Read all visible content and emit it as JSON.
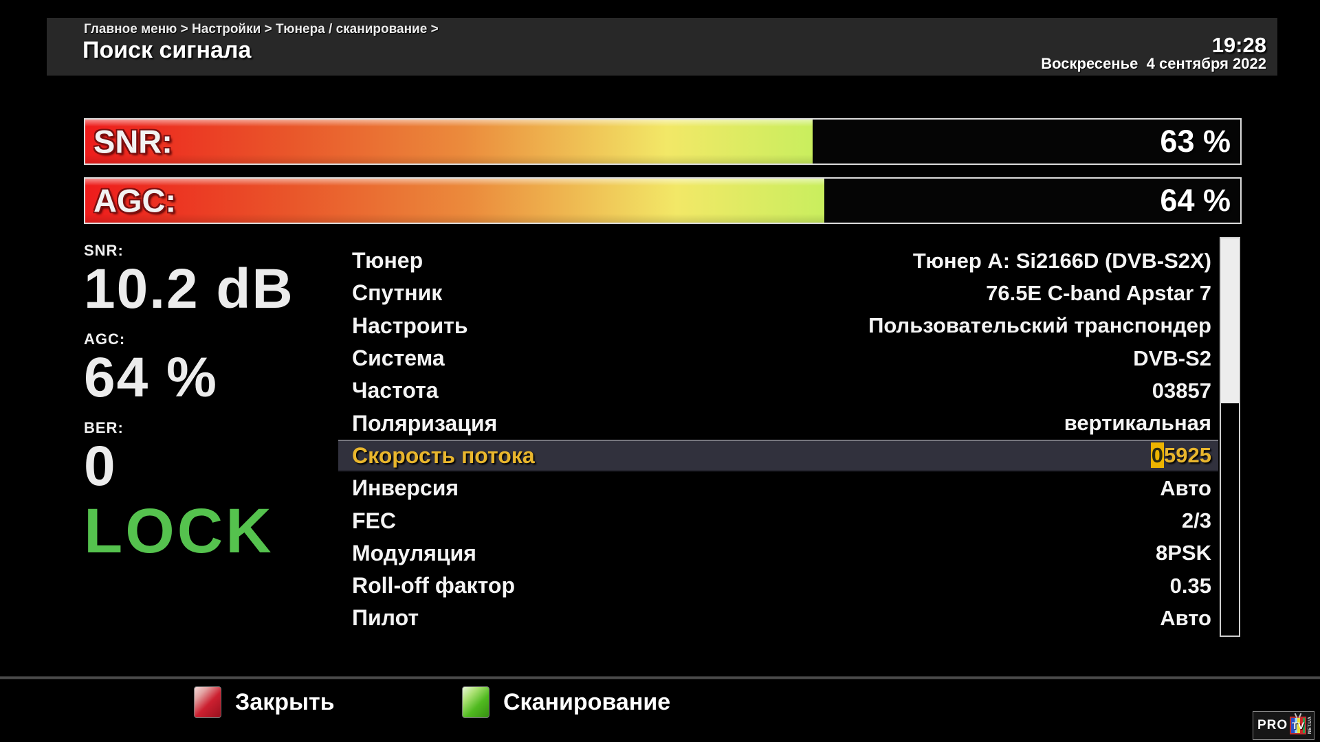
{
  "header": {
    "breadcrumb": "Главное меню > Настройки > Тюнера / сканирование >",
    "title": "Поиск сигнала",
    "time": "19:28",
    "date": "Воскресенье  4 сентября 2022"
  },
  "bars": {
    "snr": {
      "label": "SNR:",
      "value": "63 %",
      "percent": 63
    },
    "agc": {
      "label": "AGC:",
      "value": "64 %",
      "percent": 64
    }
  },
  "stats": {
    "snr": {
      "label": "SNR:",
      "value": "10.2 dB"
    },
    "agc": {
      "label": "AGC:",
      "value": "64 %"
    },
    "ber": {
      "label": "BER:",
      "value": "0"
    },
    "lock": {
      "value": "LOCK",
      "color": "#55c24e"
    }
  },
  "menu": {
    "items": [
      {
        "label": "Тюнер",
        "value": "Тюнер A: Si2166D (DVB-S2X)",
        "selected": false
      },
      {
        "label": "Спутник",
        "value": "76.5E C-band Apstar 7",
        "selected": false
      },
      {
        "label": "Настроить",
        "value": "Пользовательский транспондер",
        "selected": false
      },
      {
        "label": "Система",
        "value": "DVB-S2",
        "selected": false
      },
      {
        "label": "Частота",
        "value": "03857",
        "selected": false
      },
      {
        "label": "Поляризация",
        "value": "вертикальная",
        "selected": false
      },
      {
        "label": "Скорость потока",
        "value": "05925",
        "selected": true,
        "cursor_char": "0",
        "value_rest": "5925"
      },
      {
        "label": "Инверсия",
        "value": "Авто",
        "selected": false
      },
      {
        "label": "FEC",
        "value": "2/3",
        "selected": false
      },
      {
        "label": "Модуляция",
        "value": "8PSK",
        "selected": false
      },
      {
        "label": "Roll-off фактор",
        "value": "0.35",
        "selected": false
      },
      {
        "label": "Пилот",
        "value": "Авто",
        "selected": false
      }
    ],
    "highlight_color": "#e9b62d"
  },
  "footer": {
    "close": {
      "label": "Закрыть",
      "key_color": "#cc2030"
    },
    "scan": {
      "label": "Сканирование",
      "key_color": "#50ba20"
    }
  },
  "logo": {
    "pro": "PRO",
    "tv": "TV",
    "netua": "NET.UA"
  }
}
